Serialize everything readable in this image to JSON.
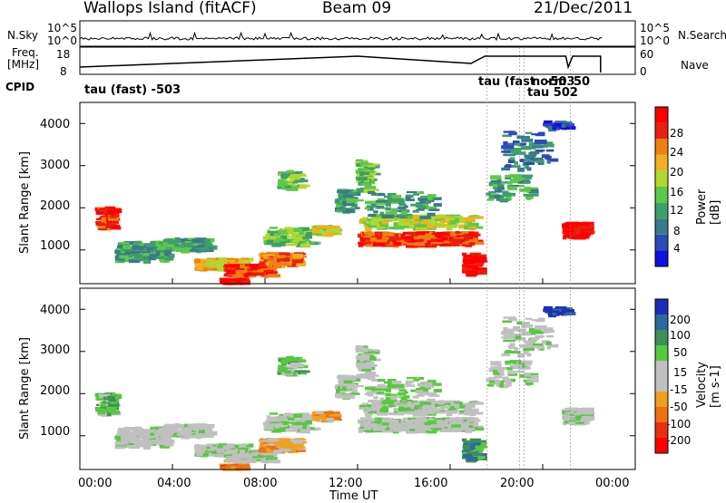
{
  "header": {
    "station": "Wallops Island (fitACF)",
    "beam": "Beam 09",
    "date": "21/Dec/2011"
  },
  "panels": {
    "nsky": {
      "label": "N.Sky",
      "ticks": [
        "10^5",
        "10^0"
      ]
    },
    "nsearch": {
      "label": "N.Search",
      "ticks": [
        "10^5",
        "10^0"
      ]
    },
    "freq": {
      "label_line1": "Freq.",
      "label_line2": "[MHz]",
      "ticks": [
        "18",
        "8"
      ]
    },
    "nave": {
      "label": "Nave",
      "ticks": [
        "60",
        "0"
      ]
    },
    "cpid": {
      "label": "CPID",
      "annotations": [
        "tau (fast) -503",
        "tau (fast",
        "norm",
        "-503",
        "50",
        "tau 502"
      ]
    }
  },
  "axes": {
    "ylabel": "Slant Range [km]",
    "yticks": [
      "1000",
      "2000",
      "3000",
      "4000"
    ],
    "xticks": [
      "00:00",
      "04:00",
      "08:00",
      "12:00",
      "16:00",
      "20:00",
      "00:00"
    ],
    "xlabel": "Time UT"
  },
  "power_bar": {
    "label": "Power [dB]",
    "ticks": [
      "4",
      "8",
      "12",
      "16",
      "20",
      "24",
      "28"
    ],
    "colors": [
      "#1010e0",
      "#2a4bb8",
      "#3a7a8a",
      "#3f9e6a",
      "#5cc84a",
      "#b0d830",
      "#f0b020",
      "#f08010",
      "#e82010",
      "#ff0000"
    ]
  },
  "velocity_bar": {
    "label": "Velocity [m s-1]",
    "ticks": [
      "200",
      "100",
      "50",
      "15",
      "-15",
      "-50",
      "-100",
      "-200"
    ],
    "colors": [
      "#1a2fb8",
      "#2d6a9a",
      "#3e8e5a",
      "#58c840",
      "#c0c0c0",
      "#c0c0c0",
      "#f0a020",
      "#f07010",
      "#e83010",
      "#ff0000"
    ]
  },
  "chart_data": {
    "type": "heatmap",
    "title": "Wallops Island (fitACF) Beam 09 21/Dec/2011",
    "xlabel": "Time UT",
    "ylabel": "Slant Range [km]",
    "xlim": [
      "00:00",
      "24:00"
    ],
    "ylim": [
      200,
      4500
    ],
    "panels": [
      {
        "name": "Power [dB]",
        "zlim": [
          0,
          30
        ]
      },
      {
        "name": "Velocity [m s-1]",
        "zlim": [
          -200,
          200
        ]
      }
    ]
  }
}
